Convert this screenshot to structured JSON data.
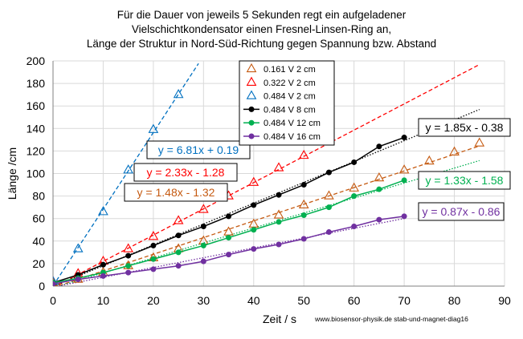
{
  "chart_data": {
    "type": "scatter",
    "title_lines": [
      "Für die Dauer von jeweils 5 Sekunden regt ein aufgeladener",
      "Vielschichtkondensator einen Fresnel-Linsen-Ring an,",
      "Länge der Struktur in Nord-Süd-Richtung gegen Spannung bzw. Abstand"
    ],
    "xlabel": "Zeit / s",
    "ylabel": "Länge /cm",
    "xlim": [
      0,
      90
    ],
    "ylim": [
      0,
      200
    ],
    "xticks": [
      0,
      10,
      20,
      30,
      40,
      50,
      60,
      70,
      80,
      90
    ],
    "yticks": [
      0,
      20,
      40,
      60,
      80,
      100,
      120,
      140,
      160,
      180,
      200
    ],
    "grid": true,
    "legend_position": "top-center",
    "credit": "www.biosensor-physik.de  stab-und-magnet-diag16",
    "series": [
      {
        "name": "0.161 V  2 cm",
        "color": "#c55a11",
        "marker": "triangle",
        "line": "none",
        "x": [
          0,
          5,
          10,
          15,
          20,
          25,
          30,
          35,
          40,
          45,
          50,
          55,
          60,
          65,
          70,
          75,
          80,
          85
        ],
        "y": [
          3,
          6,
          12,
          18,
          25,
          33,
          40,
          48,
          55,
          63,
          72,
          80,
          87,
          96,
          103,
          111,
          119,
          127
        ],
        "trend": {
          "slope": 1.48,
          "intercept": -1.32,
          "x_range": [
            0,
            85
          ],
          "color": "#c55a11",
          "style": "dashed",
          "label": "y = 1.48x - 1.32"
        }
      },
      {
        "name": "0.322 V  2 cm",
        "color": "#ff0000",
        "marker": "triangle",
        "line": "none",
        "x": [
          0,
          5,
          10,
          15,
          20,
          25,
          30,
          35,
          40,
          45,
          50,
          55
        ],
        "y": [
          4,
          11,
          22,
          33,
          44,
          58,
          68,
          80,
          92,
          105,
          116,
          128
        ],
        "trend": {
          "slope": 2.33,
          "intercept": -1.28,
          "x_range": [
            0,
            85
          ],
          "color": "#ff0000",
          "style": "dashed",
          "label": "y = 2.33x - 1.28"
        }
      },
      {
        "name": "0.484 V  2 cm",
        "color": "#0070c0",
        "marker": "triangle",
        "line": "none",
        "x": [
          0,
          5,
          10,
          15,
          20,
          25
        ],
        "y": [
          4,
          33,
          66,
          103,
          139,
          170
        ],
        "trend": {
          "slope": 6.81,
          "intercept": 0.19,
          "x_range": [
            0,
            29
          ],
          "color": "#0070c0",
          "style": "dashed",
          "label": "y = 6.81x + 0.19"
        }
      },
      {
        "name": "0.484 V  8 cm",
        "color": "#000000",
        "marker": "circle",
        "line": "solid",
        "x": [
          0,
          5,
          10,
          15,
          20,
          25,
          30,
          35,
          40,
          45,
          50,
          55,
          60,
          65,
          70
        ],
        "y": [
          3,
          10,
          19,
          27,
          36,
          45,
          53,
          62,
          72,
          81,
          90,
          101,
          110,
          124,
          132
        ],
        "trend": {
          "slope": 1.85,
          "intercept": -0.38,
          "x_range": [
            0,
            85
          ],
          "color": "#000000",
          "style": "dotted",
          "label": "y = 1.85x - 0.38"
        }
      },
      {
        "name": "0.484 V  12 cm",
        "color": "#00b050",
        "marker": "circle",
        "line": "solid",
        "x": [
          0,
          5,
          10,
          15,
          20,
          25,
          30,
          35,
          40,
          45,
          50,
          55,
          60,
          65,
          70
        ],
        "y": [
          3,
          7,
          12,
          18,
          24,
          30,
          36,
          43,
          50,
          57,
          63,
          70,
          80,
          86,
          94
        ],
        "trend": {
          "slope": 1.33,
          "intercept": -1.58,
          "x_range": [
            0,
            85
          ],
          "color": "#00b050",
          "style": "dotted",
          "label": "y = 1.33x - 1.58"
        }
      },
      {
        "name": "0.484 V  16 cm",
        "color": "#7030a0",
        "marker": "circle",
        "line": "solid",
        "x": [
          0,
          5,
          10,
          15,
          20,
          25,
          30,
          35,
          40,
          45,
          50,
          55,
          60,
          65,
          70
        ],
        "y": [
          2,
          6,
          9,
          12,
          15,
          18,
          22,
          28,
          33,
          37,
          42,
          48,
          53,
          59,
          62
        ],
        "trend": {
          "slope": 0.87,
          "intercept": -0.86,
          "x_range": [
            0,
            70
          ],
          "color": "#7030a0",
          "style": "dotted",
          "label": "y = 0.87x - 0.86"
        }
      }
    ]
  }
}
